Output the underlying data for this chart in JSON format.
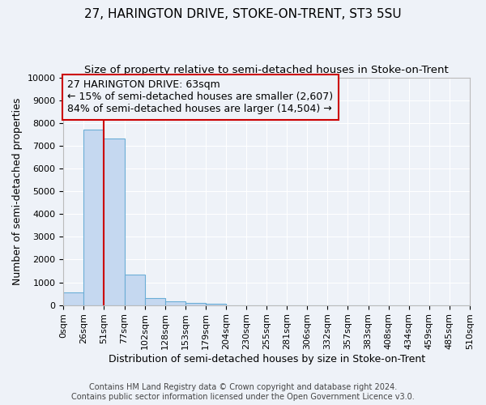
{
  "title": "27, HARINGTON DRIVE, STOKE-ON-TRENT, ST3 5SU",
  "subtitle": "Size of property relative to semi-detached houses in Stoke-on-Trent",
  "xlabel": "Distribution of semi-detached houses by size in Stoke-on-Trent",
  "ylabel": "Number of semi-detached properties",
  "footnote1": "Contains HM Land Registry data © Crown copyright and database right 2024.",
  "footnote2": "Contains public sector information licensed under the Open Government Licence v3.0.",
  "bin_labels": [
    "0sqm",
    "26sqm",
    "51sqm",
    "77sqm",
    "102sqm",
    "128sqm",
    "153sqm",
    "179sqm",
    "204sqm",
    "230sqm",
    "255sqm",
    "281sqm",
    "306sqm",
    "332sqm",
    "357sqm",
    "383sqm",
    "408sqm",
    "434sqm",
    "459sqm",
    "485sqm",
    "510sqm"
  ],
  "bar_values": [
    550,
    7700,
    7300,
    1350,
    300,
    170,
    110,
    70,
    0,
    0,
    0,
    0,
    0,
    0,
    0,
    0,
    0,
    0,
    0,
    0
  ],
  "bar_color": "#c5d8f0",
  "bar_edge_color": "#6baed6",
  "ylim": [
    0,
    10000
  ],
  "yticks": [
    0,
    1000,
    2000,
    3000,
    4000,
    5000,
    6000,
    7000,
    8000,
    9000,
    10000
  ],
  "property_bin_index": 2.0,
  "red_line_color": "#cc0000",
  "annotation_line1": "27 HARINGTON DRIVE: 63sqm",
  "annotation_line2": "← 15% of semi-detached houses are smaller (2,607)",
  "annotation_line3": "84% of semi-detached houses are larger (14,504) →",
  "annotation_box_color": "#cc0000",
  "background_color": "#eef2f8",
  "grid_color": "#ffffff",
  "title_fontsize": 11,
  "subtitle_fontsize": 9.5,
  "xlabel_fontsize": 9,
  "ylabel_fontsize": 9,
  "tick_fontsize": 8,
  "annotation_fontsize": 9,
  "footnote_fontsize": 7
}
